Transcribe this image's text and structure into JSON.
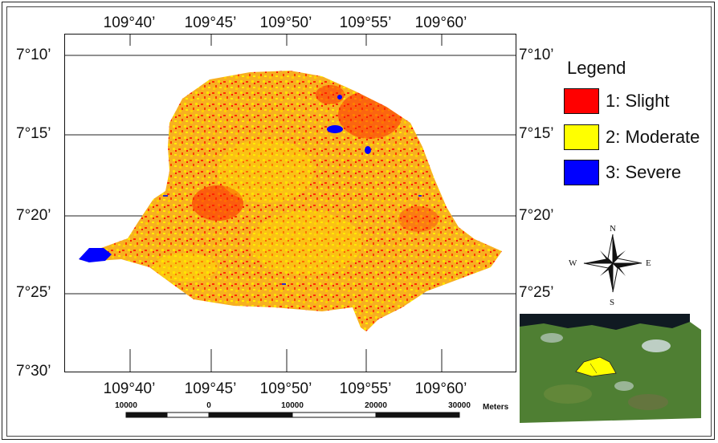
{
  "grid": {
    "lon_labels": [
      "109°40’",
      "109°45’",
      "109°50’",
      "109°55’",
      "109°60’"
    ],
    "lat_labels": [
      "7°10’",
      "7°15’",
      "7°20’",
      "7°25’",
      "7°30’"
    ]
  },
  "legend": {
    "title": "Legend",
    "items": [
      {
        "label": "1: Slight",
        "color": "#ff0000"
      },
      {
        "label": "2: Moderate",
        "color": "#ffff00"
      },
      {
        "label": "3: Severe",
        "color": "#0000ff"
      }
    ]
  },
  "compass": {
    "n": "N",
    "s": "S",
    "e": "E",
    "w": "W"
  },
  "scale": {
    "ticks": [
      "10000",
      "0",
      "10000",
      "20000",
      "30000"
    ],
    "units": "Meters"
  },
  "colors": {
    "region_base": "#f5a623",
    "slight": "#ff0000",
    "moderate": "#ffff00",
    "severe": "#0000ff",
    "inset_land": "#4f7f33",
    "inset_sea": "#101a22"
  },
  "icons": {
    "north_arrow": "compass-rose-icon"
  }
}
